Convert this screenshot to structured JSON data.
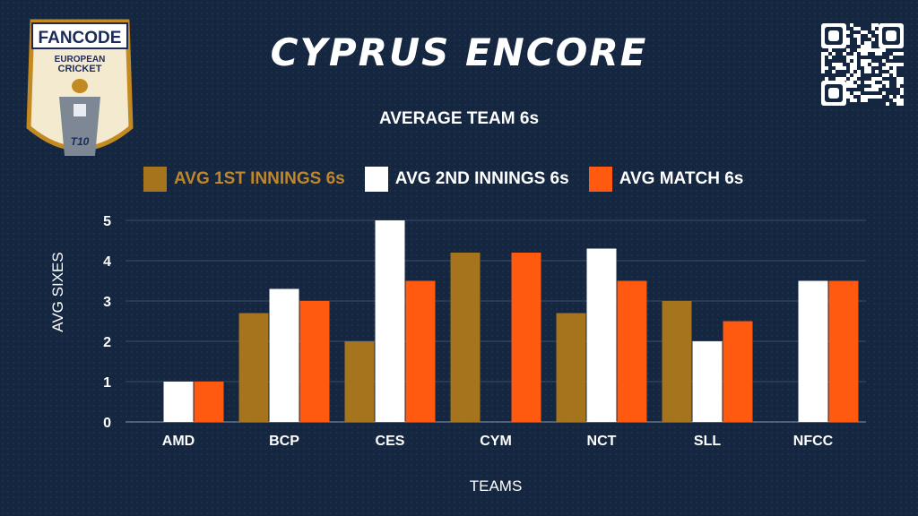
{
  "header": {
    "title": "CYPRUS ENCORE",
    "subtitle": "AVERAGE TEAM 6s"
  },
  "logo": {
    "brand": "FANCODE",
    "line1": "EUROPEAN",
    "line2": "CRICKET",
    "badge": "T10"
  },
  "colors": {
    "background": "#142640",
    "first_innings": "#A6741C",
    "second_innings": "#FFFFFF",
    "match": "#FF5A0F"
  },
  "chart_data": {
    "type": "bar",
    "title": "AVERAGE TEAM 6s",
    "xlabel": "TEAMS",
    "ylabel": "AVG SIXES",
    "ylim": [
      0,
      5
    ],
    "yticks": [
      "0",
      "1",
      "2",
      "3",
      "4",
      "5"
    ],
    "grid": true,
    "legend_position": "top",
    "categories": [
      "AMD",
      "BCP",
      "CES",
      "CYM",
      "NCT",
      "SLL",
      "NFCC"
    ],
    "series": [
      {
        "name": "AVG 1ST INNINGS 6s",
        "color": "#A6741C",
        "values": [
          0,
          2.7,
          2,
          4.2,
          2.7,
          3,
          0
        ]
      },
      {
        "name": "AVG 2ND INNINGS 6s",
        "color": "#FFFFFF",
        "values": [
          1,
          3.3,
          5,
          0,
          4.3,
          2,
          3.5
        ]
      },
      {
        "name": "AVG MATCH 6s",
        "color": "#FF5A0F",
        "values": [
          1,
          3,
          3.5,
          4.2,
          3.5,
          2.5,
          3.5
        ]
      }
    ]
  }
}
